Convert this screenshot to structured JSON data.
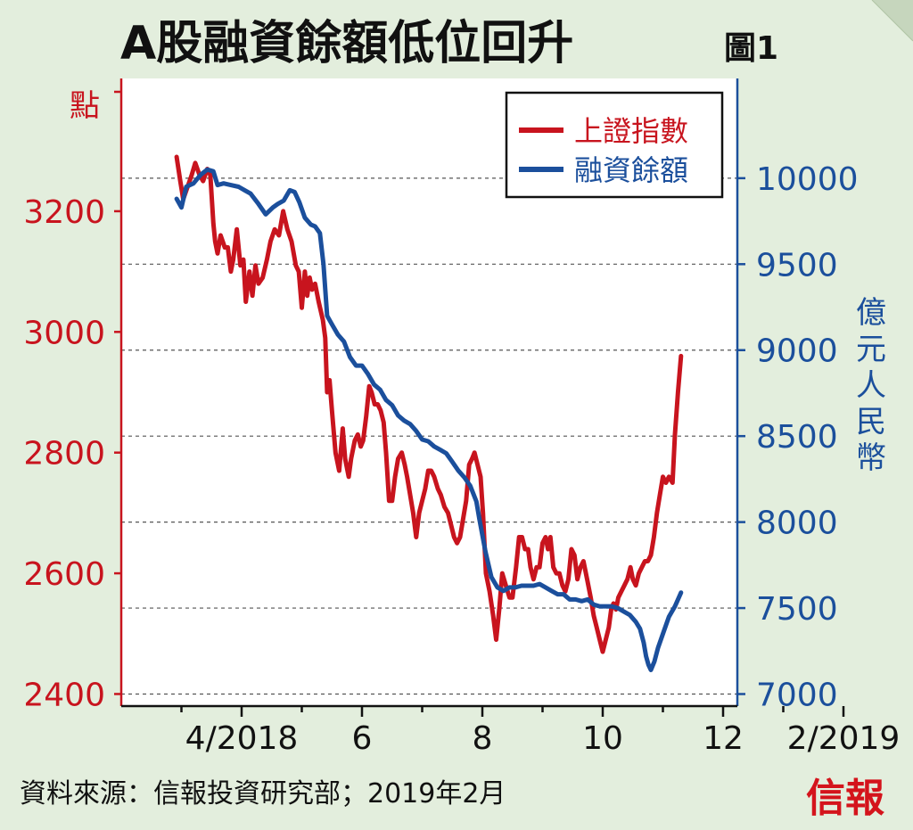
{
  "header": {
    "title": "A股融資餘額低位回升",
    "figure_label": "圖1"
  },
  "footer": {
    "source": "資料來源：信報投資研究部；2019年2月",
    "brand": "信報"
  },
  "colors": {
    "red": "#c8141e",
    "blue": "#1b4f9c",
    "background": "#e3eedd"
  },
  "chart_data": {
    "type": "line",
    "title": "A股融資餘額低位回升",
    "ylabel_left": "點",
    "ylabel_right": "億元人民幣",
    "ylim_left": [
      2380,
      3420
    ],
    "ylim_right": [
      6930,
      10580
    ],
    "yticks_left": [
      2400,
      2600,
      2800,
      3000,
      3200
    ],
    "yticks_right": [
      7000,
      7500,
      8000,
      8500,
      9000,
      9500,
      10000
    ],
    "xticks": [
      {
        "label": "4/2018",
        "t": 2
      },
      {
        "label": "6",
        "t": 4
      },
      {
        "label": "8",
        "t": 6
      },
      {
        "label": "10",
        "t": 8
      },
      {
        "label": "12",
        "t": 10
      },
      {
        "label": "2/2019",
        "t": 12
      }
    ],
    "grid": "dashed-horizontal",
    "legend": "top-right",
    "series": [
      {
        "name": "上證指數",
        "axis": "left",
        "color": "#c8141e",
        "points": [
          [
            0.92,
            3290
          ],
          [
            0.98,
            3250
          ],
          [
            1.03,
            3220
          ],
          [
            1.1,
            3240
          ],
          [
            1.17,
            3260
          ],
          [
            1.23,
            3280
          ],
          [
            1.3,
            3260
          ],
          [
            1.36,
            3250
          ],
          [
            1.43,
            3270
          ],
          [
            1.48,
            3260
          ],
          [
            1.53,
            3180
          ],
          [
            1.56,
            3150
          ],
          [
            1.6,
            3130
          ],
          [
            1.65,
            3160
          ],
          [
            1.72,
            3140
          ],
          [
            1.77,
            3140
          ],
          [
            1.82,
            3100
          ],
          [
            1.86,
            3120
          ],
          [
            1.92,
            3170
          ],
          [
            1.98,
            3110
          ],
          [
            2.03,
            3120
          ],
          [
            2.07,
            3050
          ],
          [
            2.13,
            3100
          ],
          [
            2.18,
            3060
          ],
          [
            2.23,
            3110
          ],
          [
            2.28,
            3080
          ],
          [
            2.35,
            3090
          ],
          [
            2.42,
            3120
          ],
          [
            2.48,
            3150
          ],
          [
            2.55,
            3170
          ],
          [
            2.62,
            3160
          ],
          [
            2.69,
            3200
          ],
          [
            2.76,
            3170
          ],
          [
            2.83,
            3150
          ],
          [
            2.9,
            3110
          ],
          [
            2.95,
            3100
          ],
          [
            3.0,
            3040
          ],
          [
            3.05,
            3100
          ],
          [
            3.09,
            3060
          ],
          [
            3.13,
            3090
          ],
          [
            3.17,
            3070
          ],
          [
            3.22,
            3080
          ],
          [
            3.28,
            3050
          ],
          [
            3.35,
            3020
          ],
          [
            3.39,
            2990
          ],
          [
            3.42,
            2900
          ],
          [
            3.46,
            2920
          ],
          [
            3.5,
            2870
          ],
          [
            3.56,
            2800
          ],
          [
            3.62,
            2770
          ],
          [
            3.68,
            2840
          ],
          [
            3.72,
            2790
          ],
          [
            3.78,
            2760
          ],
          [
            3.82,
            2790
          ],
          [
            3.88,
            2820
          ],
          [
            3.93,
            2830
          ],
          [
            3.98,
            2810
          ],
          [
            4.02,
            2820
          ],
          [
            4.07,
            2860
          ],
          [
            4.12,
            2910
          ],
          [
            4.16,
            2900
          ],
          [
            4.21,
            2880
          ],
          [
            4.26,
            2880
          ],
          [
            4.31,
            2870
          ],
          [
            4.36,
            2850
          ],
          [
            4.4,
            2800
          ],
          [
            4.45,
            2720
          ],
          [
            4.5,
            2720
          ],
          [
            4.55,
            2760
          ],
          [
            4.6,
            2790
          ],
          [
            4.66,
            2800
          ],
          [
            4.71,
            2780
          ],
          [
            4.75,
            2760
          ],
          [
            4.8,
            2730
          ],
          [
            4.85,
            2700
          ],
          [
            4.9,
            2660
          ],
          [
            4.95,
            2700
          ],
          [
            5.0,
            2720
          ],
          [
            5.05,
            2740
          ],
          [
            5.1,
            2770
          ],
          [
            5.15,
            2770
          ],
          [
            5.2,
            2760
          ],
          [
            5.26,
            2740
          ],
          [
            5.31,
            2730
          ],
          [
            5.37,
            2710
          ],
          [
            5.43,
            2700
          ],
          [
            5.48,
            2680
          ],
          [
            5.53,
            2660
          ],
          [
            5.58,
            2650
          ],
          [
            5.63,
            2660
          ],
          [
            5.68,
            2690
          ],
          [
            5.73,
            2720
          ],
          [
            5.78,
            2780
          ],
          [
            5.83,
            2790
          ],
          [
            5.87,
            2800
          ],
          [
            5.92,
            2780
          ],
          [
            5.97,
            2760
          ],
          [
            6.01,
            2700
          ],
          [
            6.06,
            2600
          ],
          [
            6.12,
            2570
          ],
          [
            6.18,
            2530
          ],
          [
            6.23,
            2490
          ],
          [
            6.28,
            2540
          ],
          [
            6.33,
            2600
          ],
          [
            6.39,
            2580
          ],
          [
            6.45,
            2560
          ],
          [
            6.5,
            2560
          ],
          [
            6.56,
            2610
          ],
          [
            6.61,
            2660
          ],
          [
            6.66,
            2660
          ],
          [
            6.71,
            2640
          ],
          [
            6.76,
            2640
          ],
          [
            6.8,
            2610
          ],
          [
            6.85,
            2590
          ],
          [
            6.9,
            2610
          ],
          [
            6.95,
            2610
          ],
          [
            7.0,
            2650
          ],
          [
            7.05,
            2660
          ],
          [
            7.09,
            2640
          ],
          [
            7.13,
            2660
          ],
          [
            7.18,
            2610
          ],
          [
            7.23,
            2600
          ],
          [
            7.28,
            2600
          ],
          [
            7.33,
            2580
          ],
          [
            7.38,
            2570
          ],
          [
            7.43,
            2590
          ],
          [
            7.48,
            2640
          ],
          [
            7.53,
            2630
          ],
          [
            7.58,
            2590
          ],
          [
            7.63,
            2610
          ],
          [
            7.68,
            2620
          ],
          [
            7.74,
            2590
          ],
          [
            7.8,
            2560
          ],
          [
            7.85,
            2530
          ],
          [
            7.9,
            2510
          ],
          [
            7.95,
            2490
          ],
          [
            8.0,
            2470
          ],
          [
            8.05,
            2490
          ],
          [
            8.1,
            2510
          ],
          [
            8.14,
            2540
          ],
          [
            8.18,
            2550
          ],
          [
            8.22,
            2540
          ],
          [
            8.26,
            2560
          ],
          [
            8.31,
            2570
          ],
          [
            8.36,
            2580
          ],
          [
            8.41,
            2590
          ],
          [
            8.46,
            2610
          ],
          [
            8.5,
            2590
          ],
          [
            8.55,
            2580
          ],
          [
            8.6,
            2600
          ],
          [
            8.65,
            2610
          ],
          [
            8.7,
            2620
          ],
          [
            8.75,
            2620
          ],
          [
            8.8,
            2630
          ],
          [
            8.85,
            2660
          ],
          [
            8.9,
            2700
          ],
          [
            8.95,
            2730
          ],
          [
            9.0,
            2760
          ],
          [
            9.05,
            2750
          ],
          [
            9.1,
            2760
          ],
          [
            9.16,
            2750
          ],
          [
            9.2,
            2830
          ],
          [
            9.25,
            2900
          ],
          [
            9.3,
            2960
          ]
        ]
      },
      {
        "name": "融資餘額",
        "axis": "right",
        "color": "#1b4f9c",
        "points": [
          [
            0.92,
            9880
          ],
          [
            1.0,
            9830
          ],
          [
            1.08,
            9950
          ],
          [
            1.2,
            9970
          ],
          [
            1.32,
            10020
          ],
          [
            1.43,
            10050
          ],
          [
            1.53,
            10040
          ],
          [
            1.6,
            9960
          ],
          [
            1.7,
            9970
          ],
          [
            1.82,
            9960
          ],
          [
            1.95,
            9950
          ],
          [
            2.05,
            9930
          ],
          [
            2.15,
            9910
          ],
          [
            2.28,
            9850
          ],
          [
            2.4,
            9790
          ],
          [
            2.52,
            9830
          ],
          [
            2.6,
            9850
          ],
          [
            2.7,
            9870
          ],
          [
            2.8,
            9930
          ],
          [
            2.88,
            9920
          ],
          [
            2.96,
            9860
          ],
          [
            3.05,
            9770
          ],
          [
            3.15,
            9730
          ],
          [
            3.22,
            9720
          ],
          [
            3.3,
            9680
          ],
          [
            3.36,
            9500
          ],
          [
            3.42,
            9200
          ],
          [
            3.5,
            9150
          ],
          [
            3.6,
            9090
          ],
          [
            3.7,
            9050
          ],
          [
            3.8,
            8960
          ],
          [
            3.9,
            8910
          ],
          [
            4.0,
            8910
          ],
          [
            4.1,
            8860
          ],
          [
            4.2,
            8800
          ],
          [
            4.3,
            8770
          ],
          [
            4.4,
            8710
          ],
          [
            4.5,
            8680
          ],
          [
            4.6,
            8620
          ],
          [
            4.7,
            8590
          ],
          [
            4.8,
            8570
          ],
          [
            4.9,
            8530
          ],
          [
            5.0,
            8480
          ],
          [
            5.1,
            8470
          ],
          [
            5.2,
            8440
          ],
          [
            5.3,
            8420
          ],
          [
            5.4,
            8400
          ],
          [
            5.5,
            8350
          ],
          [
            5.6,
            8300
          ],
          [
            5.7,
            8260
          ],
          [
            5.8,
            8210
          ],
          [
            5.9,
            8120
          ],
          [
            5.95,
            8020
          ],
          [
            6.05,
            7830
          ],
          [
            6.15,
            7680
          ],
          [
            6.25,
            7620
          ],
          [
            6.35,
            7600
          ],
          [
            6.45,
            7620
          ],
          [
            6.55,
            7620
          ],
          [
            6.65,
            7630
          ],
          [
            6.75,
            7630
          ],
          [
            6.85,
            7630
          ],
          [
            6.95,
            7640
          ],
          [
            7.05,
            7620
          ],
          [
            7.15,
            7600
          ],
          [
            7.25,
            7580
          ],
          [
            7.35,
            7580
          ],
          [
            7.45,
            7550
          ],
          [
            7.55,
            7550
          ],
          [
            7.65,
            7540
          ],
          [
            7.75,
            7550
          ],
          [
            7.85,
            7520
          ],
          [
            7.95,
            7510
          ],
          [
            8.05,
            7510
          ],
          [
            8.15,
            7510
          ],
          [
            8.25,
            7500
          ],
          [
            8.35,
            7480
          ],
          [
            8.45,
            7460
          ],
          [
            8.55,
            7420
          ],
          [
            8.62,
            7380
          ],
          [
            8.68,
            7300
          ],
          [
            8.72,
            7220
          ],
          [
            8.76,
            7170
          ],
          [
            8.8,
            7140
          ],
          [
            8.86,
            7190
          ],
          [
            8.92,
            7270
          ],
          [
            9.0,
            7350
          ],
          [
            9.1,
            7450
          ],
          [
            9.2,
            7510
          ],
          [
            9.3,
            7590
          ]
        ]
      }
    ]
  }
}
